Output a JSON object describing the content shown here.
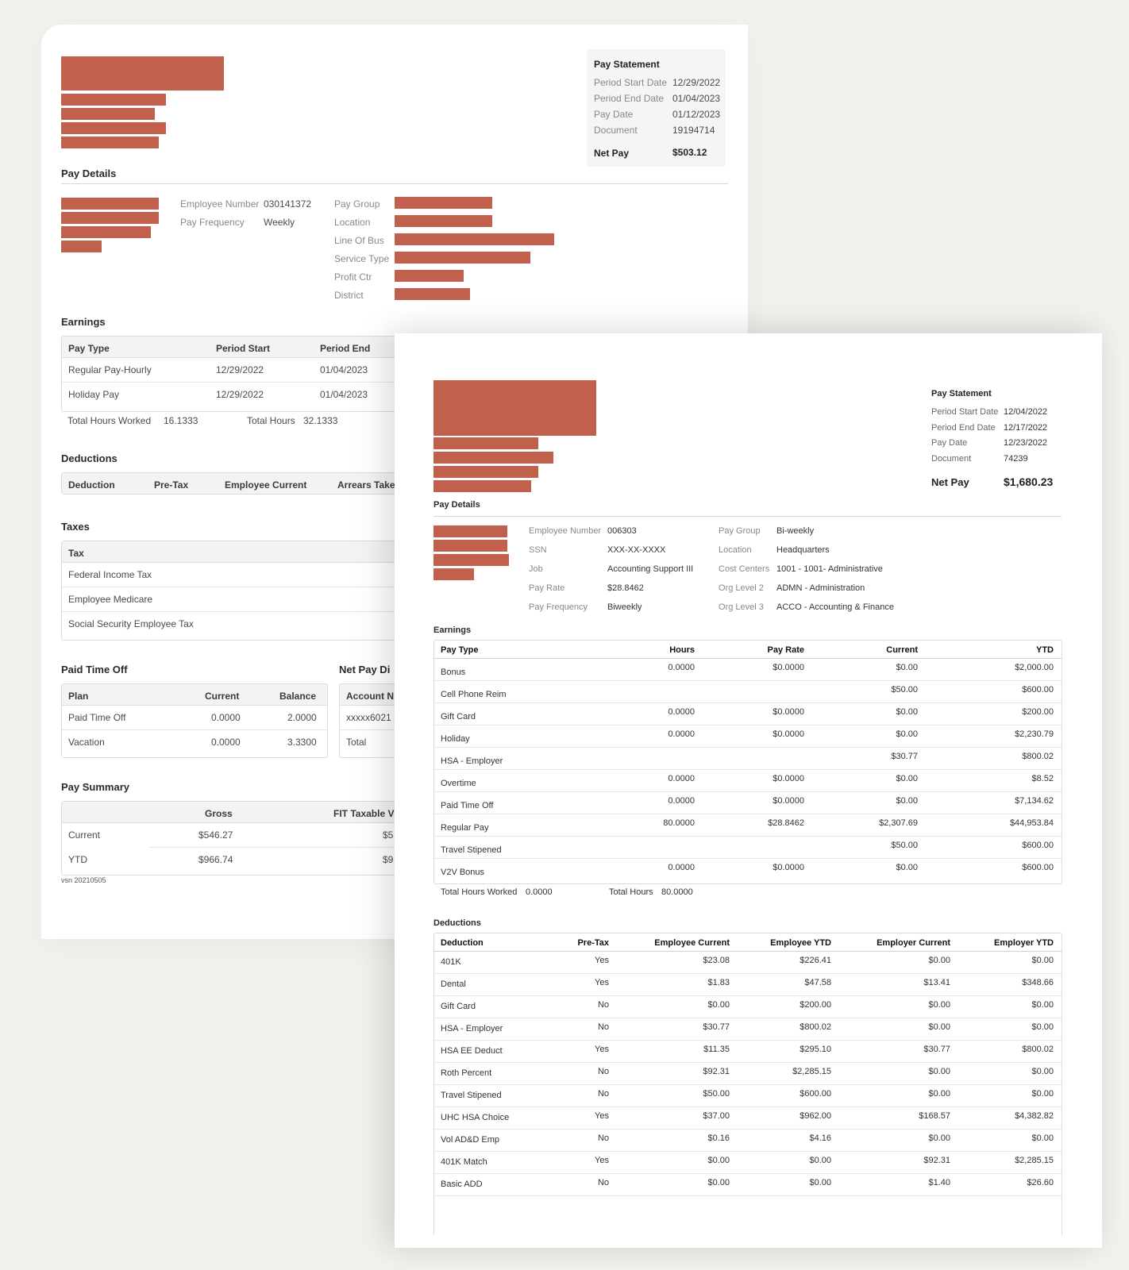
{
  "colors": {
    "background": "#f2f1ed",
    "redaction": "#c2604e",
    "paper": "#ffffff"
  },
  "doc1": {
    "statement": {
      "title": "Pay Statement",
      "rows": [
        {
          "label": "Period Start Date",
          "value": "12/29/2022"
        },
        {
          "label": "Period End Date",
          "value": "01/04/2023"
        },
        {
          "label": "Pay Date",
          "value": "01/12/2023"
        },
        {
          "label": "Document",
          "value": "19194714"
        }
      ],
      "net_pay_label": "Net Pay",
      "net_pay_value": "$503.12"
    },
    "pay_details": {
      "title": "Pay Details",
      "left": [
        {
          "label": "Employee Number",
          "value": "030141372"
        },
        {
          "label": "Pay Frequency",
          "value": "Weekly"
        }
      ],
      "right_labels": [
        "Pay Group",
        "Location",
        "Line Of Bus",
        "Service Type",
        "Profit Ctr",
        "District"
      ]
    },
    "earnings": {
      "title": "Earnings",
      "headers": [
        "Pay Type",
        "Period Start",
        "Period End"
      ],
      "rows": [
        [
          "Regular Pay-Hourly",
          "12/29/2022",
          "01/04/2023"
        ],
        [
          "Holiday Pay",
          "12/29/2022",
          "01/04/2023"
        ]
      ],
      "total_hours_worked_label": "Total Hours Worked",
      "total_hours_worked": "16.1333",
      "total_hours_label": "Total Hours",
      "total_hours": "32.1333"
    },
    "deductions": {
      "title": "Deductions",
      "headers": [
        "Deduction",
        "Pre-Tax",
        "Employee Current",
        "Arrears Take"
      ]
    },
    "taxes": {
      "title": "Taxes",
      "header": "Tax",
      "rows": [
        "Federal Income Tax",
        "Employee Medicare",
        "Social Security Employee Tax"
      ]
    },
    "pto": {
      "title": "Paid Time Off",
      "headers": [
        "Plan",
        "Current",
        "Balance"
      ],
      "rows": [
        [
          "Paid Time Off",
          "0.0000",
          "2.0000"
        ],
        [
          "Vacation",
          "0.0000",
          "3.3300"
        ]
      ]
    },
    "net_pay_dist": {
      "title": "Net Pay Di",
      "header": "Account N",
      "rows": [
        "xxxxx6021",
        "Total"
      ]
    },
    "pay_summary": {
      "title": "Pay Summary",
      "headers": [
        "Gross",
        "FIT Taxable V"
      ],
      "rows": [
        {
          "label": "Current",
          "gross": "$546.27",
          "fit": "$5"
        },
        {
          "label": "YTD",
          "gross": "$966.74",
          "fit": "$9"
        }
      ]
    },
    "version": "vsn 20210505"
  },
  "doc2": {
    "statement": {
      "title": "Pay Statement",
      "rows": [
        {
          "label": "Period Start Date",
          "value": "12/04/2022"
        },
        {
          "label": "Period End Date",
          "value": "12/17/2022"
        },
        {
          "label": "Pay Date",
          "value": "12/23/2022"
        },
        {
          "label": "Document",
          "value": "74239"
        }
      ],
      "net_pay_label": "Net Pay",
      "net_pay_value": "$1,680.23"
    },
    "pay_details": {
      "title": "Pay Details",
      "left": [
        {
          "label": "Employee Number",
          "value": "006303"
        },
        {
          "label": "SSN",
          "value": "XXX-XX-XXXX"
        },
        {
          "label": "Job",
          "value": "Accounting Support III"
        },
        {
          "label": "Pay Rate",
          "value": "$28.8462"
        },
        {
          "label": "Pay Frequency",
          "value": "Biweekly"
        }
      ],
      "right": [
        {
          "label": "Pay Group",
          "value": "Bi-weekly"
        },
        {
          "label": "Location",
          "value": "Headquarters"
        },
        {
          "label": "Cost Centers",
          "value": "1001 - 1001- Administrative"
        },
        {
          "label": "Org Level 2",
          "value": "ADMN - Administration"
        },
        {
          "label": "Org Level 3",
          "value": "ACCO - Accounting & Finance"
        }
      ]
    },
    "earnings": {
      "title": "Earnings",
      "headers": [
        "Pay Type",
        "Hours",
        "Pay Rate",
        "Current",
        "YTD"
      ],
      "rows": [
        [
          "Bonus",
          "0.0000",
          "$0.0000",
          "$0.00",
          "$2,000.00"
        ],
        [
          "Cell Phone Reim",
          "",
          "",
          "$50.00",
          "$600.00"
        ],
        [
          "Gift Card",
          "0.0000",
          "$0.0000",
          "$0.00",
          "$200.00"
        ],
        [
          "Holiday",
          "0.0000",
          "$0.0000",
          "$0.00",
          "$2,230.79"
        ],
        [
          "HSA - Employer",
          "",
          "",
          "$30.77",
          "$800.02"
        ],
        [
          "Overtime",
          "0.0000",
          "$0.0000",
          "$0.00",
          "$8.52"
        ],
        [
          "Paid Time Off",
          "0.0000",
          "$0.0000",
          "$0.00",
          "$7,134.62"
        ],
        [
          "Regular Pay",
          "80.0000",
          "$28.8462",
          "$2,307.69",
          "$44,953.84"
        ],
        [
          "Travel Stipened",
          "",
          "",
          "$50.00",
          "$600.00"
        ],
        [
          "V2V Bonus",
          "0.0000",
          "$0.0000",
          "$0.00",
          "$600.00"
        ]
      ],
      "total_hours_worked_label": "Total Hours Worked",
      "total_hours_worked": "0.0000",
      "total_hours_label": "Total Hours",
      "total_hours": "80.0000"
    },
    "deductions": {
      "title": "Deductions",
      "headers": [
        "Deduction",
        "Pre-Tax",
        "Employee Current",
        "Employee YTD",
        "Employer Current",
        "Employer YTD"
      ],
      "rows": [
        [
          "401K",
          "Yes",
          "$23.08",
          "$226.41",
          "$0.00",
          "$0.00"
        ],
        [
          "Dental",
          "Yes",
          "$1.83",
          "$47.58",
          "$13.41",
          "$348.66"
        ],
        [
          "Gift Card",
          "No",
          "$0.00",
          "$200.00",
          "$0.00",
          "$0.00"
        ],
        [
          "HSA - Employer",
          "No",
          "$30.77",
          "$800.02",
          "$0.00",
          "$0.00"
        ],
        [
          "HSA EE Deduct",
          "Yes",
          "$11.35",
          "$295.10",
          "$30.77",
          "$800.02"
        ],
        [
          "Roth Percent",
          "No",
          "$92.31",
          "$2,285.15",
          "$0.00",
          "$0.00"
        ],
        [
          "Travel Stipened",
          "No",
          "$50.00",
          "$600.00",
          "$0.00",
          "$0.00"
        ],
        [
          "UHC HSA Choice",
          "Yes",
          "$37.00",
          "$962.00",
          "$168.57",
          "$4,382.82"
        ],
        [
          "Vol AD&D Emp",
          "No",
          "$0.16",
          "$4.16",
          "$0.00",
          "$0.00"
        ],
        [
          "401K Match",
          "Yes",
          "$0.00",
          "$0.00",
          "$92.31",
          "$2,285.15"
        ],
        [
          "Basic ADD",
          "No",
          "$0.00",
          "$0.00",
          "$1.40",
          "$26.60"
        ]
      ]
    }
  }
}
